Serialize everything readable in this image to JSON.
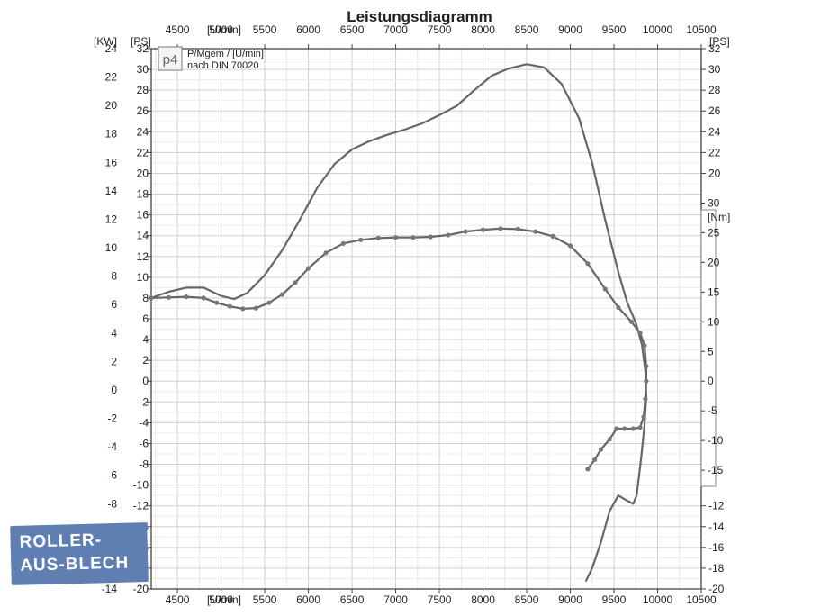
{
  "chart_data": {
    "type": "line",
    "title": "Leistungsdiagramm",
    "legend": {
      "logo": "p4",
      "line1": "P/Mgem / [U/min]",
      "line2": "nach DIN 70020"
    },
    "x_axis": {
      "label": "[U/min]",
      "range": [
        4200,
        10500
      ],
      "ticks": [
        4500,
        5000,
        5500,
        6000,
        6500,
        7000,
        7500,
        8000,
        8500,
        9000,
        9500,
        10000,
        10500
      ],
      "tick_labels": [
        "4500",
        "5000",
        "5500",
        "6000",
        "6500",
        "7000",
        "7500",
        "8000",
        "8500",
        "9000",
        "9500",
        "10000",
        "10500"
      ]
    },
    "y_axes": {
      "kw": {
        "label": "[KW]",
        "range": [
          -14,
          24
        ],
        "ticks": [
          24,
          22,
          20,
          18,
          16,
          14,
          12,
          10,
          8,
          6,
          4,
          2,
          0,
          -2,
          -4,
          -6,
          -8,
          -10,
          -12,
          -14
        ]
      },
      "ps": {
        "label": "[PS]",
        "range": [
          -20,
          32
        ],
        "ticks": [
          32,
          30,
          28,
          26,
          24,
          22,
          20,
          18,
          16,
          14,
          12,
          10,
          8,
          6,
          4,
          2,
          0,
          -2,
          -4,
          -6,
          -8,
          -10,
          -12,
          -14,
          -16,
          -18,
          -20
        ]
      },
      "ps_right_upper": {
        "label": "[PS]",
        "ticks": [
          32,
          30,
          28,
          26,
          24,
          22,
          20
        ]
      },
      "nm": {
        "label": "[Nm]",
        "range": [
          -15,
          30
        ],
        "ticks": [
          30,
          25,
          20,
          15,
          10,
          5,
          0,
          -5,
          -10,
          -15
        ]
      },
      "ps_right_lower": {
        "ticks": [
          -12,
          -14,
          -16,
          -18,
          -20
        ]
      }
    },
    "series": [
      {
        "unit": "PS",
        "marker": "none",
        "points": [
          [
            4200,
            8.0
          ],
          [
            4400,
            8.6
          ],
          [
            4600,
            9.0
          ],
          [
            4800,
            9.0
          ],
          [
            5000,
            8.2
          ],
          [
            5150,
            7.9
          ],
          [
            5300,
            8.5
          ],
          [
            5500,
            10.2
          ],
          [
            5700,
            12.6
          ],
          [
            5900,
            15.5
          ],
          [
            6100,
            18.6
          ],
          [
            6300,
            20.9
          ],
          [
            6500,
            22.3
          ],
          [
            6700,
            23.1
          ],
          [
            6900,
            23.7
          ],
          [
            7100,
            24.2
          ],
          [
            7300,
            24.8
          ],
          [
            7500,
            25.6
          ],
          [
            7700,
            26.5
          ],
          [
            7900,
            28.0
          ],
          [
            8100,
            29.4
          ],
          [
            8300,
            30.1
          ],
          [
            8500,
            30.5
          ],
          [
            8700,
            30.2
          ],
          [
            8900,
            28.6
          ],
          [
            9100,
            25.3
          ],
          [
            9250,
            21.0
          ],
          [
            9400,
            15.5
          ],
          [
            9550,
            10.5
          ],
          [
            9650,
            7.6
          ],
          [
            9750,
            5.6
          ],
          [
            9820,
            3.5
          ],
          [
            9860,
            1.0
          ],
          [
            9870,
            -1.5
          ],
          [
            9850,
            -4.2
          ],
          [
            9810,
            -7.5
          ],
          [
            9760,
            -11.0
          ],
          [
            9720,
            -11.8
          ],
          [
            9650,
            -11.5
          ],
          [
            9550,
            -11.0
          ],
          [
            9450,
            -12.5
          ],
          [
            9350,
            -15.5
          ],
          [
            9250,
            -18.0
          ],
          [
            9180,
            -19.2
          ]
        ]
      },
      {
        "unit": "Nm",
        "marker": "dot",
        "points": [
          [
            4200,
            14.0
          ],
          [
            4400,
            14.1
          ],
          [
            4600,
            14.2
          ],
          [
            4800,
            14.0
          ],
          [
            4950,
            13.2
          ],
          [
            5100,
            12.6
          ],
          [
            5250,
            12.2
          ],
          [
            5400,
            12.3
          ],
          [
            5550,
            13.2
          ],
          [
            5700,
            14.6
          ],
          [
            5850,
            16.6
          ],
          [
            6000,
            19.0
          ],
          [
            6200,
            21.6
          ],
          [
            6400,
            23.2
          ],
          [
            6600,
            23.8
          ],
          [
            6800,
            24.1
          ],
          [
            7000,
            24.2
          ],
          [
            7200,
            24.2
          ],
          [
            7400,
            24.3
          ],
          [
            7600,
            24.6
          ],
          [
            7800,
            25.2
          ],
          [
            8000,
            25.5
          ],
          [
            8200,
            25.7
          ],
          [
            8400,
            25.6
          ],
          [
            8600,
            25.2
          ],
          [
            8800,
            24.4
          ],
          [
            9000,
            22.8
          ],
          [
            9200,
            19.8
          ],
          [
            9400,
            15.5
          ],
          [
            9550,
            12.4
          ],
          [
            9700,
            10.0
          ],
          [
            9800,
            8.1
          ],
          [
            9850,
            6.0
          ],
          [
            9870,
            2.5
          ],
          [
            9870,
            0.0
          ],
          [
            9860,
            -3.0
          ],
          [
            9840,
            -6.0
          ],
          [
            9800,
            -7.8
          ],
          [
            9720,
            -8.0
          ],
          [
            9620,
            -8.0
          ],
          [
            9530,
            -8.0
          ],
          [
            9450,
            -9.8
          ],
          [
            9350,
            -11.5
          ],
          [
            9280,
            -13.2
          ],
          [
            9200,
            -14.8
          ]
        ]
      }
    ]
  },
  "watermark": {
    "line1": "ROLLER-",
    "line2": "AUS-BLECH"
  }
}
